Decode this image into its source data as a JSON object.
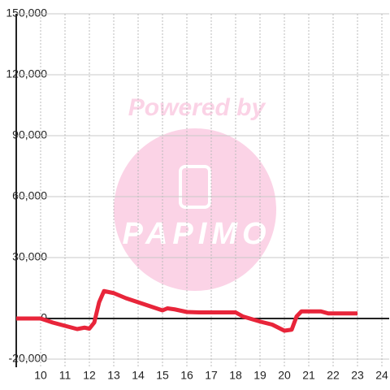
{
  "chart_data": {
    "type": "line",
    "watermark": [
      "Powered by",
      "PAPIMO"
    ],
    "x": [
      9,
      10,
      10.5,
      11,
      11.5,
      11.8,
      12,
      12.2,
      12.4,
      12.6,
      13,
      13.5,
      14,
      14.5,
      15,
      15.2,
      15.5,
      16,
      16.5,
      17,
      17.5,
      18,
      18.3,
      19,
      19.5,
      20,
      20.3,
      20.5,
      20.7,
      21.5,
      21.8,
      23
    ],
    "series": [
      {
        "color": "#e8253a",
        "values": [
          0,
          0,
          -2000,
          -3600,
          -5200,
          -4500,
          -5000,
          -2000,
          8000,
          13500,
          12500,
          10000,
          8000,
          6000,
          4000,
          5000,
          4500,
          3200,
          3000,
          3000,
          3000,
          3000,
          1000,
          -1500,
          -3000,
          -6000,
          -5500,
          1000,
          3500,
          3500,
          2500,
          2500
        ]
      }
    ],
    "xlim": [
      9,
      24.3
    ],
    "xticks": [
      10,
      11,
      12,
      13,
      14,
      15,
      16,
      17,
      18,
      19,
      20,
      21,
      22,
      23,
      24
    ],
    "ylim": [
      -24000,
      150000
    ],
    "yticks": [
      {
        "value": -20000,
        "label": "-20,000"
      },
      0,
      {
        "value": 30000,
        "label": "30,000"
      },
      {
        "value": 60000,
        "label": "60,000"
      },
      {
        "value": 90000,
        "label": "90,000"
      },
      {
        "value": 120000,
        "label": "120,000"
      },
      {
        "value": 150000,
        "label": "150,000"
      }
    ],
    "grid": true
  }
}
